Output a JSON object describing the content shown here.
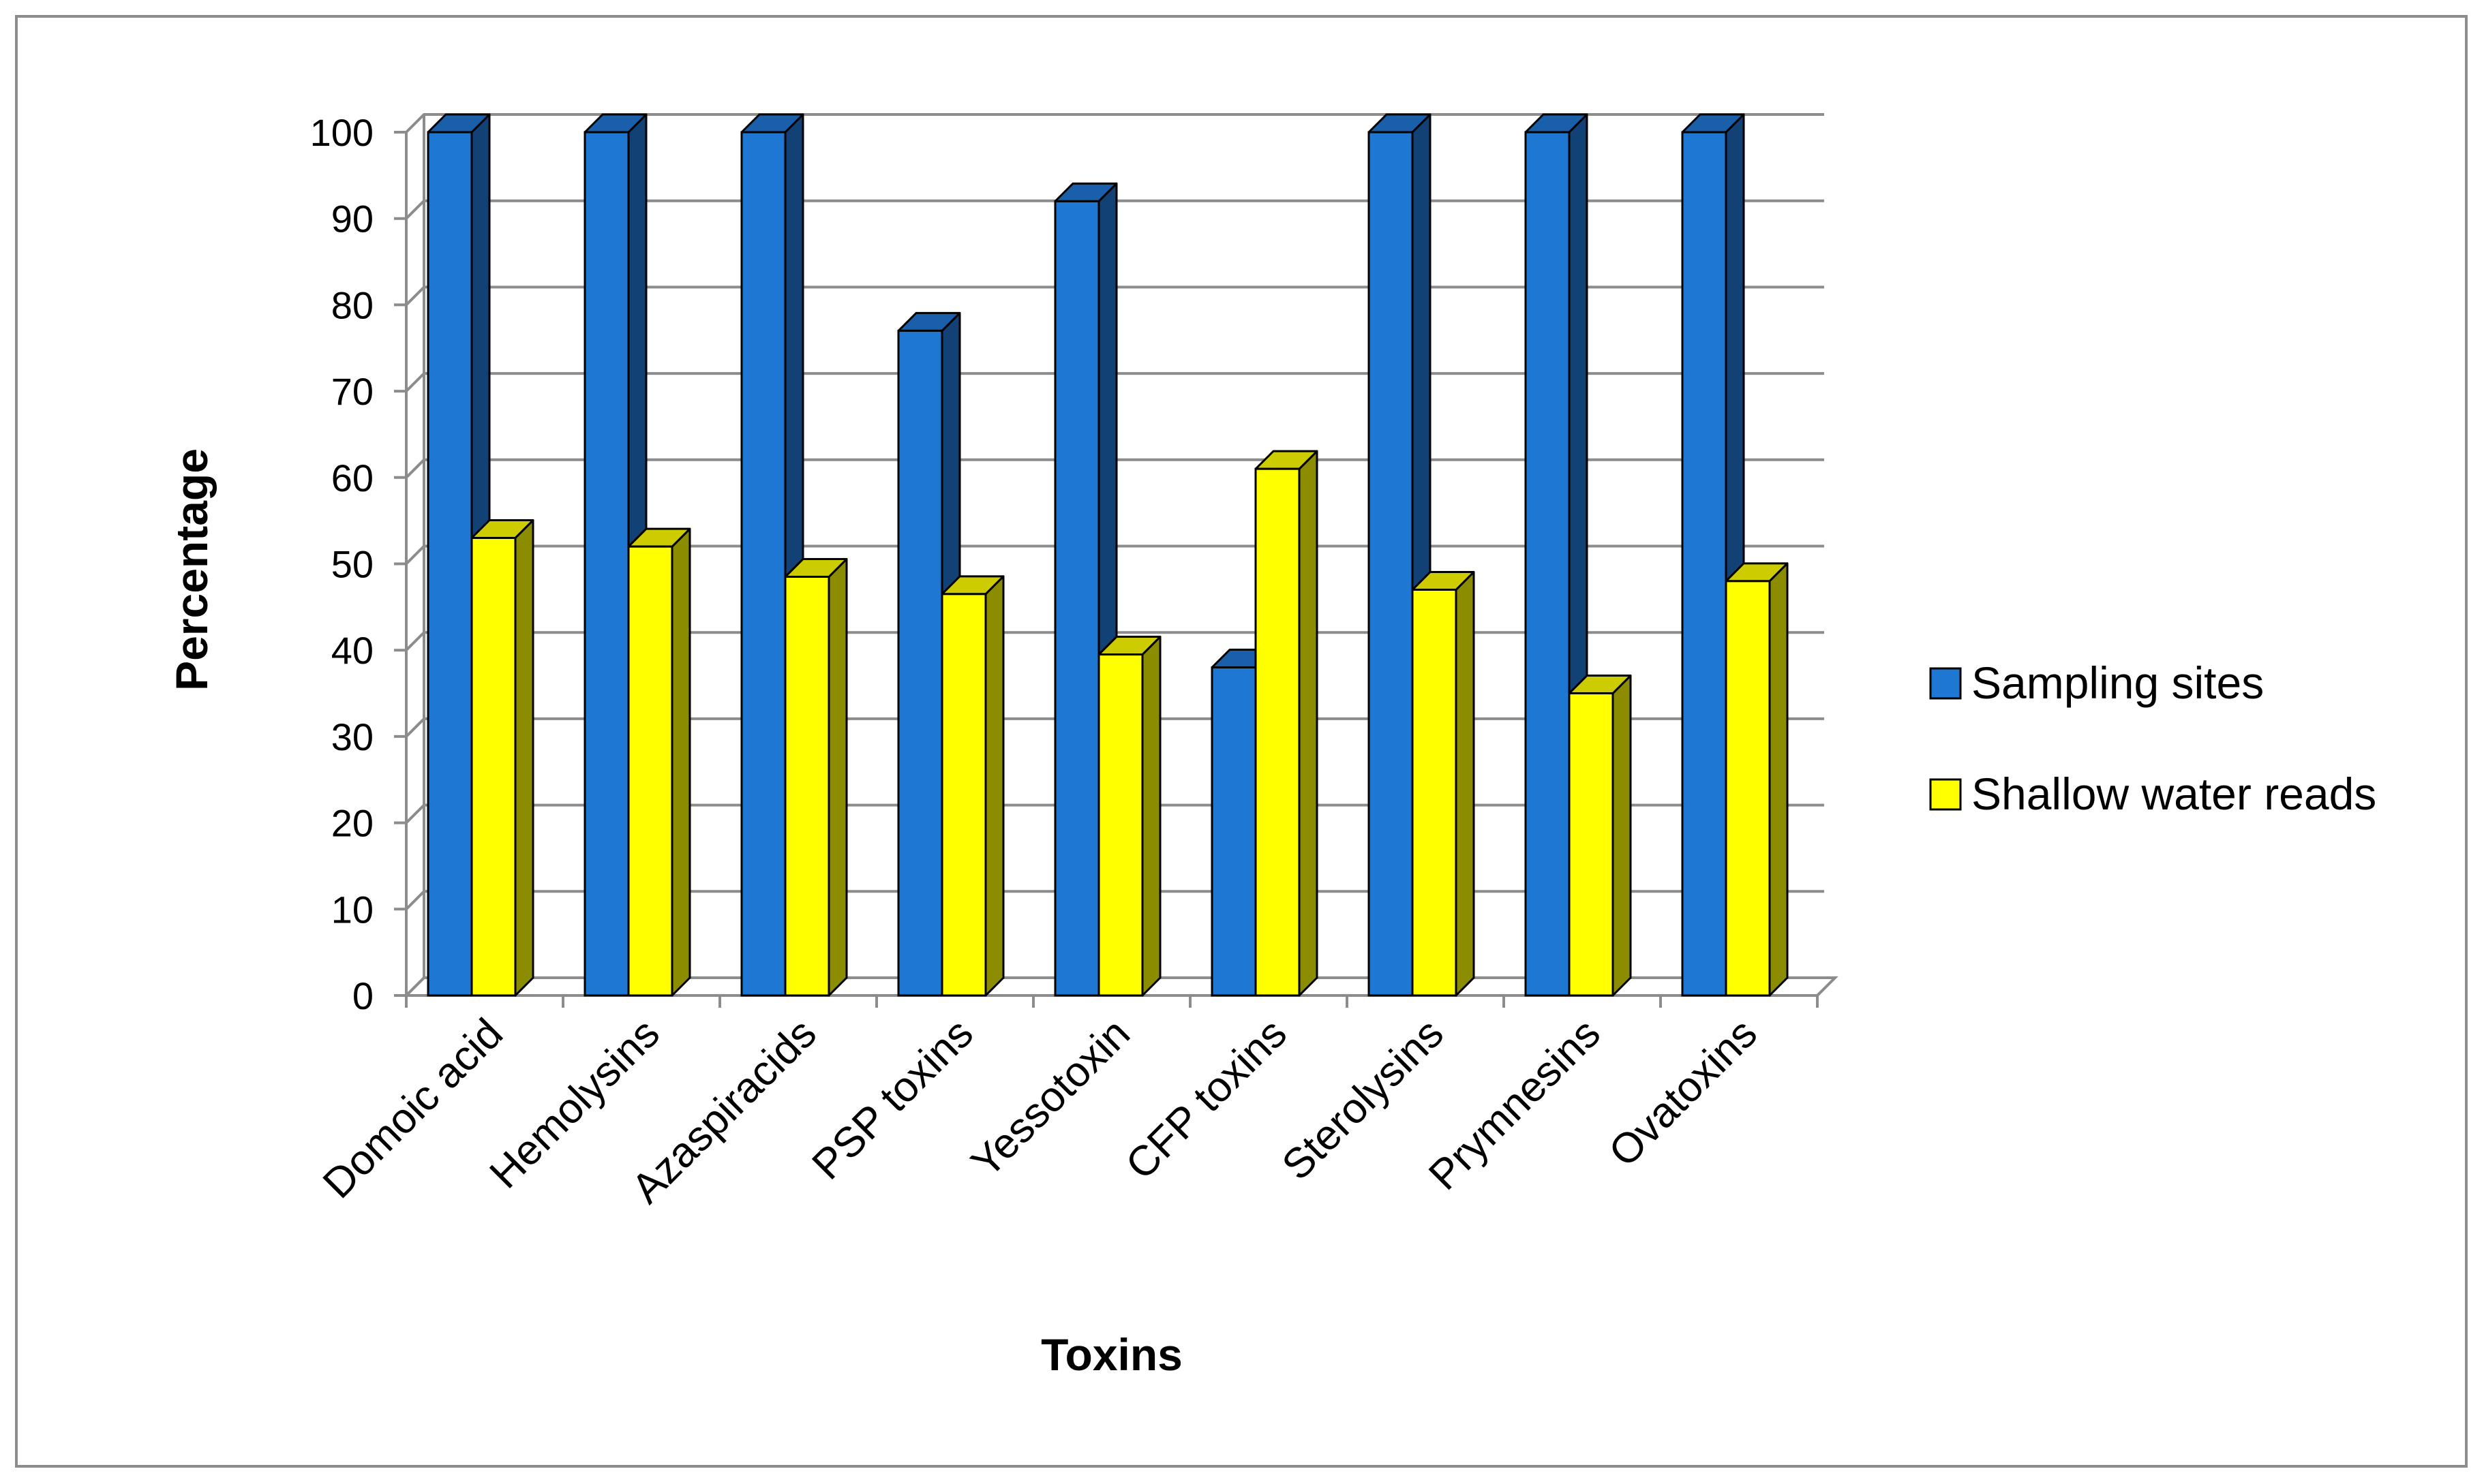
{
  "chart_data": {
    "type": "bar",
    "title": "",
    "xlabel": "Toxins",
    "ylabel": "Percentage",
    "ylim": [
      0,
      100
    ],
    "y_ticks": [
      "0",
      "10",
      "20",
      "30",
      "40",
      "50",
      "60",
      "70",
      "80",
      "90",
      "100"
    ],
    "grid": true,
    "style": "3d-clustered-column",
    "legend_position": "right",
    "categories": [
      "Domoic acid",
      "Hemolysins",
      "Azaspiracids",
      "PSP toxins",
      "Yessotoxin",
      "CFP toxins",
      "Sterolysins",
      "Prymnesins",
      "Ovatoxins"
    ],
    "series": [
      {
        "name": "Sampling sites",
        "color": "#1f77d4",
        "values": [
          100,
          100,
          100,
          77,
          92,
          38,
          100,
          100,
          100
        ]
      },
      {
        "name": "Shallow water reads",
        "color": "#ffff00",
        "values": [
          53,
          52,
          48.5,
          46.5,
          39.5,
          61,
          47,
          35,
          48
        ]
      }
    ]
  }
}
